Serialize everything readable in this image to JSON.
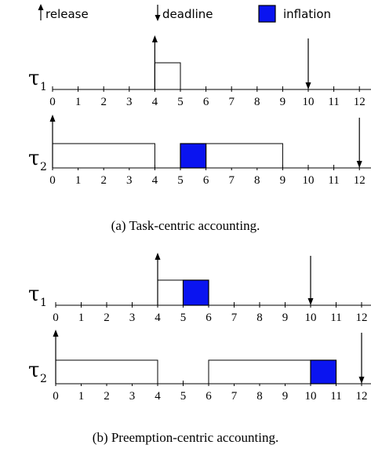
{
  "legend": {
    "release": "release",
    "deadline": "deadline",
    "inflation": "inflation"
  },
  "colors": {
    "inflation": "#0a14f0",
    "stroke": "#000000"
  },
  "axis_ticks": [
    "0",
    "1",
    "2",
    "3",
    "4",
    "5",
    "6",
    "7",
    "8",
    "9",
    "10",
    "11",
    "12"
  ],
  "panels": [
    {
      "caption": "(a) Task-centric accounting.",
      "tasks": [
        {
          "symbol": "τ",
          "subscript": "1",
          "release_time": 4,
          "deadline_time": 10,
          "exec_blocks": [
            {
              "start": 4,
              "end": 5
            }
          ],
          "inflation_blocks": []
        },
        {
          "symbol": "τ",
          "subscript": "2",
          "release_time": 0,
          "deadline_time": 12,
          "exec_blocks": [
            {
              "start": 0,
              "end": 4
            },
            {
              "start": 6,
              "end": 9
            }
          ],
          "inflation_blocks": [
            {
              "start": 5,
              "end": 6
            }
          ]
        }
      ]
    },
    {
      "caption": "(b) Preemption-centric accounting.",
      "tasks": [
        {
          "symbol": "τ",
          "subscript": "1",
          "release_time": 4,
          "deadline_time": 10,
          "exec_blocks": [
            {
              "start": 4,
              "end": 5
            }
          ],
          "inflation_blocks": [
            {
              "start": 5,
              "end": 6
            }
          ]
        },
        {
          "symbol": "τ",
          "subscript": "2",
          "release_time": 0,
          "deadline_time": 12,
          "exec_blocks": [
            {
              "start": 0,
              "end": 4
            },
            {
              "start": 6,
              "end": 10
            }
          ],
          "inflation_blocks": [
            {
              "start": 10,
              "end": 11
            }
          ]
        }
      ]
    }
  ]
}
